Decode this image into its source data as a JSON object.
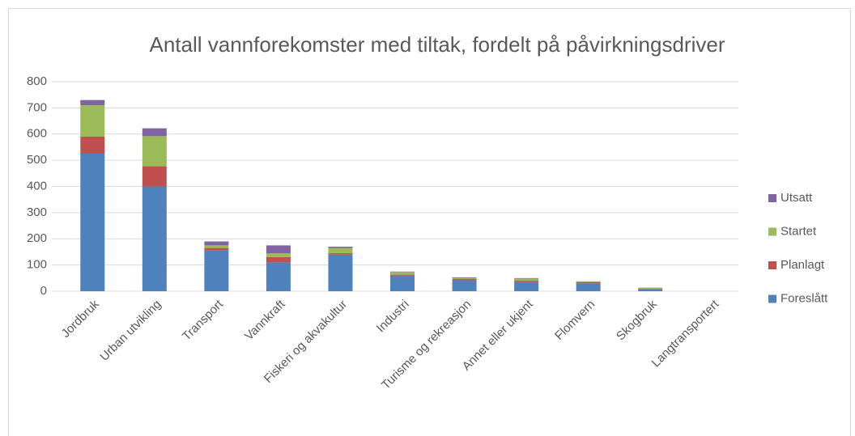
{
  "chart_data": {
    "type": "stacked_bar",
    "title": "Antall vannforekomster med tiltak, fordelt på påvirkningsdriver",
    "categories": [
      "Jordbruk",
      "Urban utvikling",
      "Transport",
      "Vannkraft",
      "Fiskeri og akvakultur",
      "Industri",
      "Turisme og rekreasjon",
      "Annet eller ukjent",
      "Flomvern",
      "Skogbruk",
      "Langtransportert"
    ],
    "series": [
      {
        "name": "Foreslått",
        "color": "#4f81bd",
        "values": [
          525,
          400,
          155,
          110,
          140,
          60,
          42,
          35,
          30,
          8,
          0
        ]
      },
      {
        "name": "Planlagt",
        "color": "#c0504d",
        "values": [
          65,
          77,
          10,
          20,
          5,
          3,
          5,
          5,
          5,
          1,
          0
        ]
      },
      {
        "name": "Startet",
        "color": "#9bbb59",
        "values": [
          120,
          115,
          10,
          15,
          20,
          10,
          3,
          8,
          3,
          5,
          0
        ]
      },
      {
        "name": "Utsatt",
        "color": "#8064a2",
        "values": [
          20,
          30,
          15,
          30,
          5,
          2,
          3,
          2,
          0,
          0,
          0
        ]
      }
    ],
    "ylim": [
      0,
      800
    ],
    "yticks": [
      0,
      100,
      200,
      300,
      400,
      500,
      600,
      700,
      800
    ],
    "grid": true,
    "legend": "right"
  }
}
